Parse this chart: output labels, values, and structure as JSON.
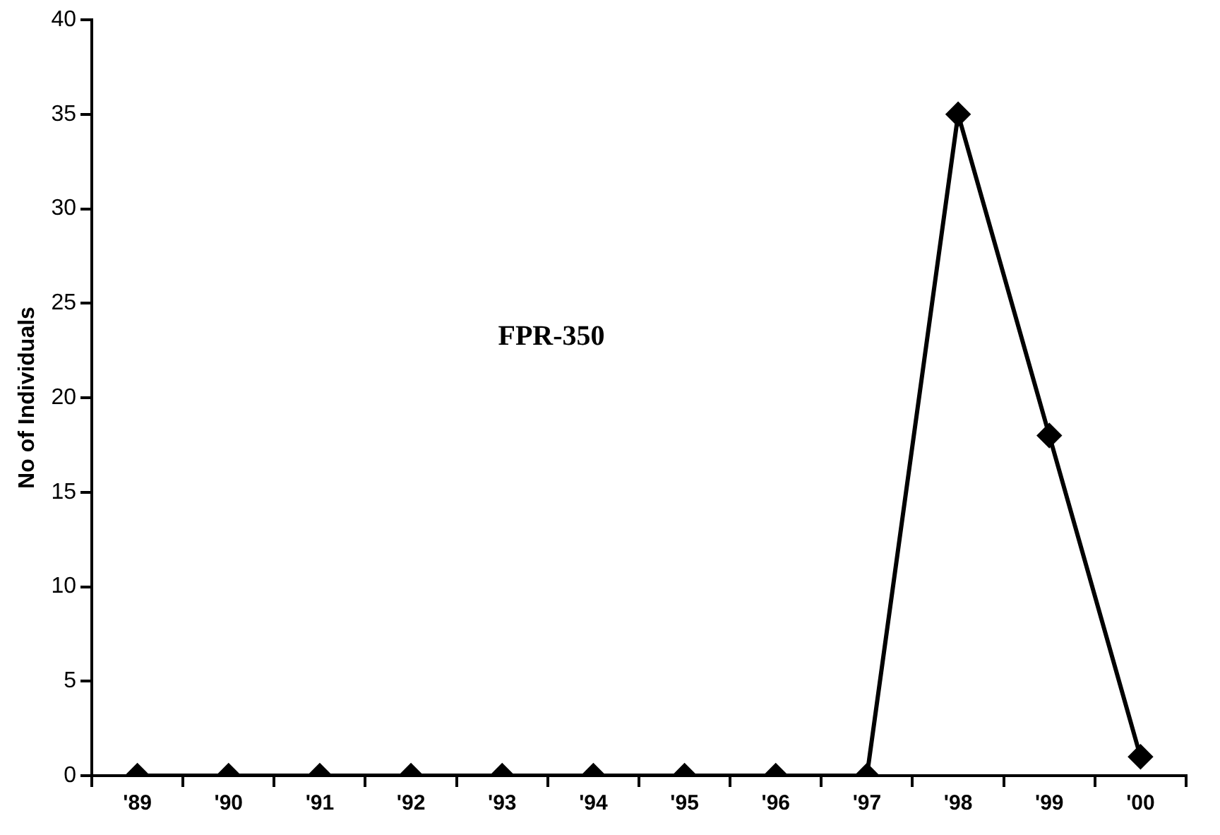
{
  "chart_data": {
    "type": "line",
    "ylabel": "No of Individuals",
    "categories": [
      "'89",
      "'90",
      "'91",
      "'92",
      "'93",
      "'94",
      "'95",
      "'96",
      "'97",
      "'98",
      "'99",
      "'00"
    ],
    "series": [
      {
        "color": "#000000",
        "values": [
          0,
          0,
          0,
          0,
          0,
          0,
          0,
          0,
          0,
          35,
          18,
          1
        ]
      }
    ],
    "ylim": [
      0,
      40
    ],
    "yticks": [
      0,
      5,
      10,
      15,
      20,
      25,
      30,
      35,
      40
    ],
    "grid": false,
    "legend": false,
    "marker": "diamond",
    "line_style": "solid",
    "annotations": [
      "FPR-350"
    ]
  }
}
